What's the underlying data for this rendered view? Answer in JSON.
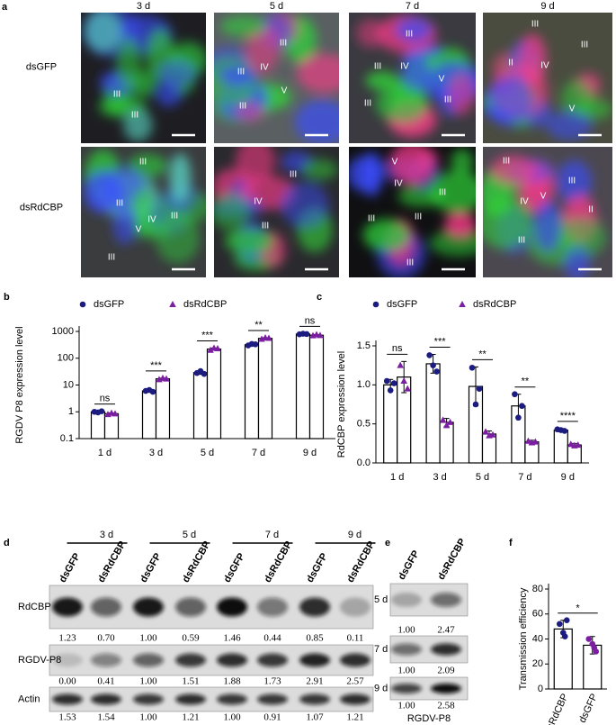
{
  "figure_a": {
    "label": "a",
    "columns": [
      "3 d",
      "5 d",
      "7 d",
      "9 d"
    ],
    "rows": [
      "dsGFP",
      "dsRdCBP"
    ],
    "tiles": [
      [
        [
          "III",
          "III"
        ],
        [
          "III",
          "III",
          "IV",
          "V",
          "III"
        ],
        [
          "III",
          "III",
          "IV",
          "V",
          "III",
          "III"
        ],
        [
          "III",
          "III",
          "II",
          "IV",
          "V"
        ]
      ],
      [
        [
          "III",
          "III",
          "IV",
          "III",
          "V",
          "III"
        ],
        [
          "III",
          "IV",
          "III"
        ],
        [
          "V",
          "IV",
          "III",
          "III",
          "III",
          "III"
        ],
        [
          "III",
          "III",
          "IV",
          "V",
          "II",
          "III"
        ]
      ]
    ]
  },
  "chart_data": [
    {
      "type": "bar",
      "panel": "b",
      "ylabel": "RGDV P8 expression level",
      "log_scale": true,
      "categories": [
        "1 d",
        "3 d",
        "5 d",
        "7 d",
        "9 d"
      ],
      "ylim": [
        0.1,
        1000
      ],
      "yticks": [
        0.1,
        1,
        10,
        100,
        1000
      ],
      "series": [
        {
          "name": "dsGFP",
          "color": "#1c1c80",
          "marker": "circle",
          "values": [
            1,
            6,
            29,
            320,
            800
          ],
          "errors": [
            0.05,
            0.5,
            4,
            25,
            30
          ],
          "points": [
            [
              1.0,
              0.95,
              1.05
            ],
            [
              6.0,
              6.5,
              5.6
            ],
            [
              28,
              33,
              26
            ],
            [
              300,
              340,
              330
            ],
            [
              780,
              820,
              800
            ]
          ]
        },
        {
          "name": "dsRdCBP",
          "color": "#7b1fa2",
          "marker": "triangle",
          "values": [
            0.85,
            17,
            220,
            550,
            720
          ],
          "errors": [
            0.05,
            1,
            20,
            30,
            40
          ],
          "points": [
            [
              0.8,
              0.9,
              0.85
            ],
            [
              16,
              18,
              17
            ],
            [
              200,
              240,
              230
            ],
            [
              520,
              580,
              560
            ],
            [
              700,
              760,
              710
            ]
          ]
        }
      ],
      "significance": [
        "ns",
        "***",
        "***",
        "**",
        "ns"
      ]
    },
    {
      "type": "bar",
      "panel": "c",
      "ylabel": "RdCBP expression level",
      "log_scale": false,
      "categories": [
        "1 d",
        "3 d",
        "5 d",
        "7 d",
        "9 d"
      ],
      "ylim": [
        0,
        1.5
      ],
      "yticks": [
        {
          "value": 0,
          "label": "0.0"
        },
        0.5,
        {
          "value": 1,
          "label": "1.0"
        },
        1.5
      ],
      "series": [
        {
          "name": "dsGFP",
          "color": "#1c1c80",
          "marker": "circle",
          "values": [
            1.0,
            1.27,
            0.98,
            0.73,
            0.42
          ],
          "errors": [
            0.07,
            0.12,
            0.25,
            0.15,
            0.02
          ],
          "points": [
            [
              1.05,
              0.93,
              1.02
            ],
            [
              1.38,
              1.25,
              1.17
            ],
            [
              1.22,
              0.75,
              0.95
            ],
            [
              0.88,
              0.58,
              0.73
            ],
            [
              0.43,
              0.42,
              0.41
            ]
          ]
        },
        {
          "name": "dsRdCBP",
          "color": "#7b1fa2",
          "marker": "triangle",
          "values": [
            1.1,
            0.52,
            0.37,
            0.27,
            0.23
          ],
          "errors": [
            0.2,
            0.05,
            0.04,
            0.02,
            0.02
          ],
          "points": [
            [
              1.25,
              1.05,
              0.95
            ],
            [
              0.55,
              0.48,
              0.52
            ],
            [
              0.4,
              0.35,
              0.36
            ],
            [
              0.28,
              0.26,
              0.27
            ],
            [
              0.24,
              0.22,
              0.23
            ]
          ]
        }
      ],
      "significance": [
        "ns",
        "***",
        "**",
        "**",
        "****"
      ]
    },
    {
      "type": "bar",
      "panel": "f",
      "ylabel": "Transmission efficiency",
      "log_scale": false,
      "categories": [
        "dsRdCBP",
        "dsGFP"
      ],
      "values": [
        48,
        35
      ],
      "errors": [
        7,
        7
      ],
      "points": [
        [
          52,
          45,
          55,
          42
        ],
        [
          40,
          36,
          30,
          33
        ]
      ],
      "colors": [
        "#1c1c80",
        "#7b1fa2"
      ],
      "ylim": [
        0,
        80
      ],
      "yticks": [
        0,
        20,
        40,
        60,
        80
      ],
      "significance": [
        "*"
      ]
    }
  ],
  "blot_d": {
    "label": "d",
    "times": [
      "3 d",
      "5 d",
      "7 d",
      "9 d"
    ],
    "lanes": [
      "dsGFP",
      "dsRdCBP",
      "dsGFP",
      "dsRdCBP",
      "dsGFP",
      "dsRdCBP",
      "dsGFP",
      "dsRdCBP"
    ],
    "rows": [
      {
        "name": "RdCBP",
        "values": [
          "1.23",
          "0.70",
          "1.00",
          "0.59",
          "1.46",
          "0.44",
          "0.85",
          "0.11"
        ]
      },
      {
        "name": "RGDV-P8",
        "values": [
          "0.00",
          "0.41",
          "1.00",
          "1.51",
          "1.88",
          "1.73",
          "2.91",
          "2.57"
        ]
      },
      {
        "name": "Actin",
        "values": [
          "1.53",
          "1.54",
          "1.00",
          "1.21",
          "1.00",
          "0.91",
          "1.07",
          "1.21"
        ]
      }
    ]
  },
  "blot_e": {
    "label": "e",
    "lanes": [
      "dsGFP",
      "dsRdCBP"
    ],
    "times": [
      "5 d",
      "7 d",
      "9 d"
    ],
    "values": [
      [
        "1.00",
        "2.47"
      ],
      [
        "1.00",
        "2.09"
      ],
      [
        "1.00",
        "2.58"
      ]
    ],
    "caption": "RGDV-P8"
  }
}
